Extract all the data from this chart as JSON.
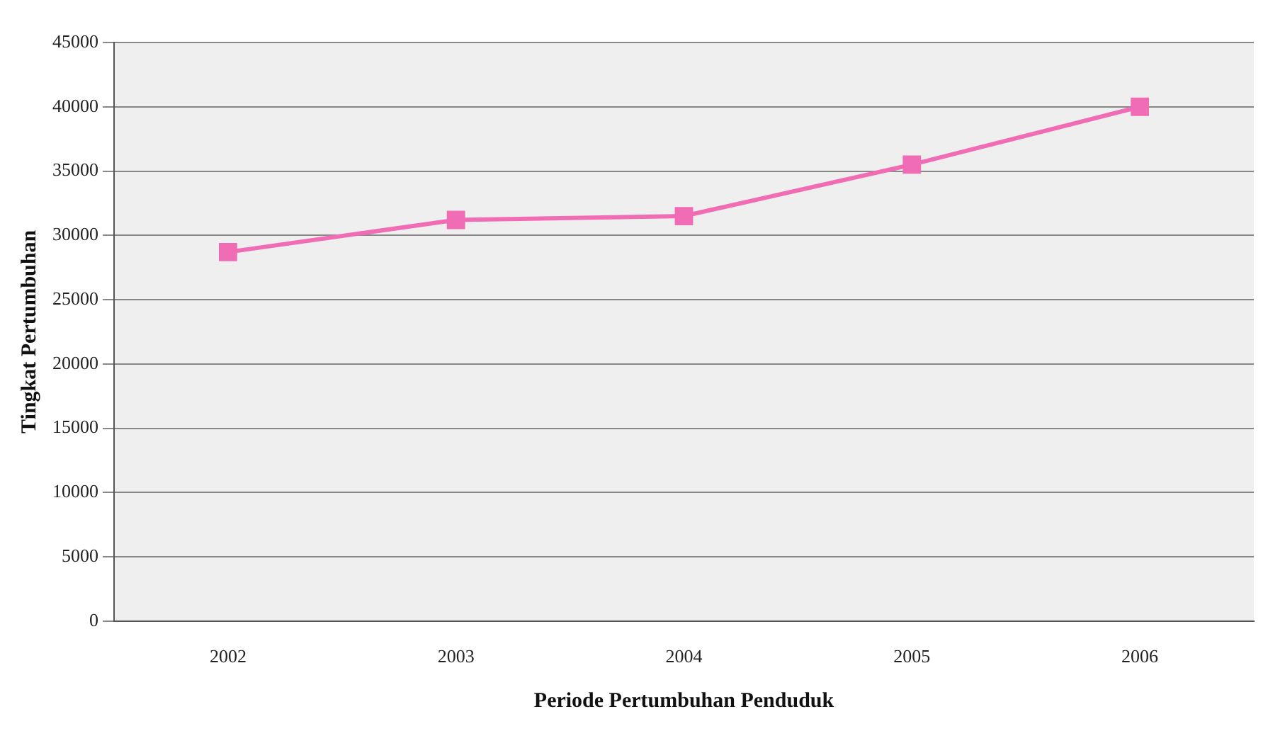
{
  "chart_data": {
    "type": "line",
    "xlabel": "Periode Pertumbuhan Penduduk",
    "ylabel": "Tingkat Pertumbuhan",
    "categories": [
      "2002",
      "2003",
      "2004",
      "2005",
      "2006"
    ],
    "series": [
      {
        "color": "#f06cb4",
        "values": [
          28700,
          31200,
          31500,
          35500,
          40000
        ]
      }
    ],
    "ylim": [
      0,
      45000
    ],
    "yticks": [
      0,
      5000,
      10000,
      15000,
      20000,
      25000,
      30000,
      35000,
      40000,
      45000
    ],
    "grid": "y",
    "legend": false,
    "marker": "square",
    "line_style": "solid"
  }
}
